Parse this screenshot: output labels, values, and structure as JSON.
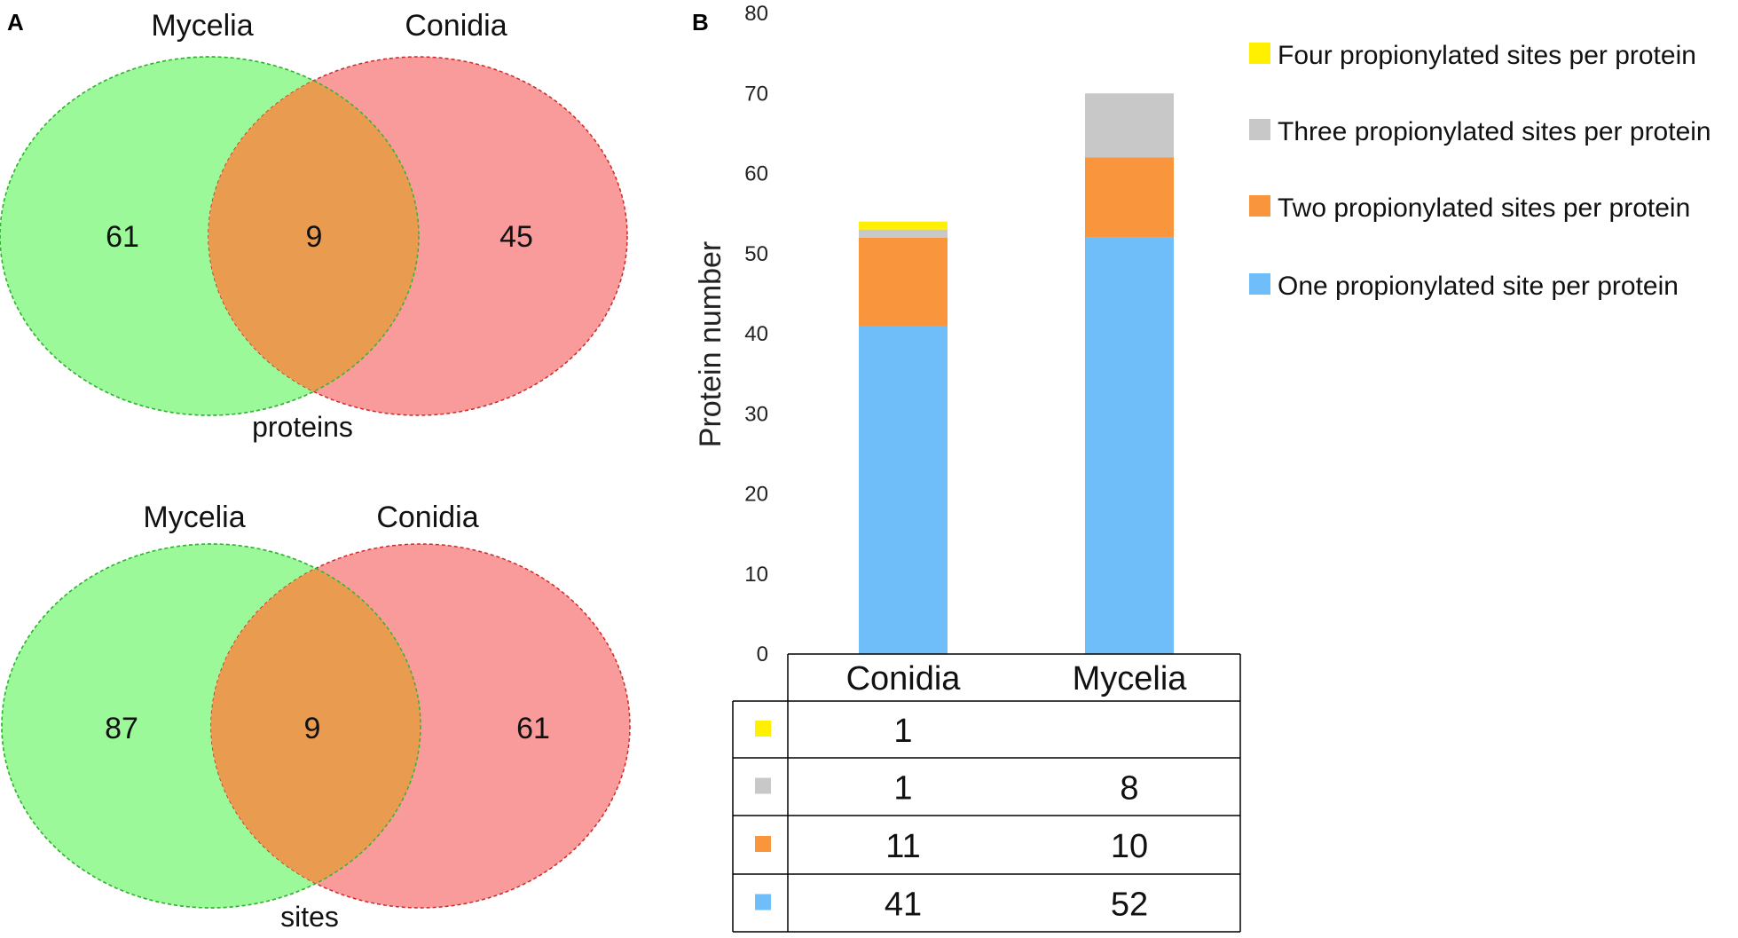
{
  "panel_a": {
    "label": "A",
    "venns": [
      {
        "left_title": "Mycelia",
        "right_title": "Conidia",
        "left_only": "61",
        "overlap": "9",
        "right_only": "45",
        "caption": "proteins"
      },
      {
        "left_title": "Mycelia",
        "right_title": "Conidia",
        "left_only": "87",
        "overlap": "9",
        "right_only": "61",
        "caption": "sites"
      }
    ],
    "colors": {
      "left": "#9cf99a",
      "right": "#f99b9b",
      "overlap": "#e99c50"
    }
  },
  "panel_b": {
    "label": "B"
  },
  "chart_data": {
    "type": "bar",
    "stacked": true,
    "categories": [
      "Conidia",
      "Mycelia"
    ],
    "series": [
      {
        "name": "One propionylated site per protein",
        "color": "#6fbdf9",
        "values": [
          41,
          52
        ]
      },
      {
        "name": "Two propionylated sites per protein",
        "color": "#f9953c",
        "values": [
          11,
          10
        ]
      },
      {
        "name": "Three propionylated sites per protein",
        "color": "#c8c8c8",
        "values": [
          1,
          8
        ]
      },
      {
        "name": "Four propionylated sites per protein",
        "color": "#fef000",
        "values": [
          1,
          null
        ]
      }
    ],
    "legend_order": [
      3,
      2,
      1,
      0
    ],
    "table_order": [
      3,
      2,
      1,
      0
    ],
    "ylabel": "Protein number",
    "xlabel": "",
    "ylim": [
      0,
      80
    ],
    "yticks": [
      "0",
      "10",
      "20",
      "30",
      "40",
      "50",
      "60",
      "70",
      "80"
    ],
    "legend_position": "top-right"
  }
}
